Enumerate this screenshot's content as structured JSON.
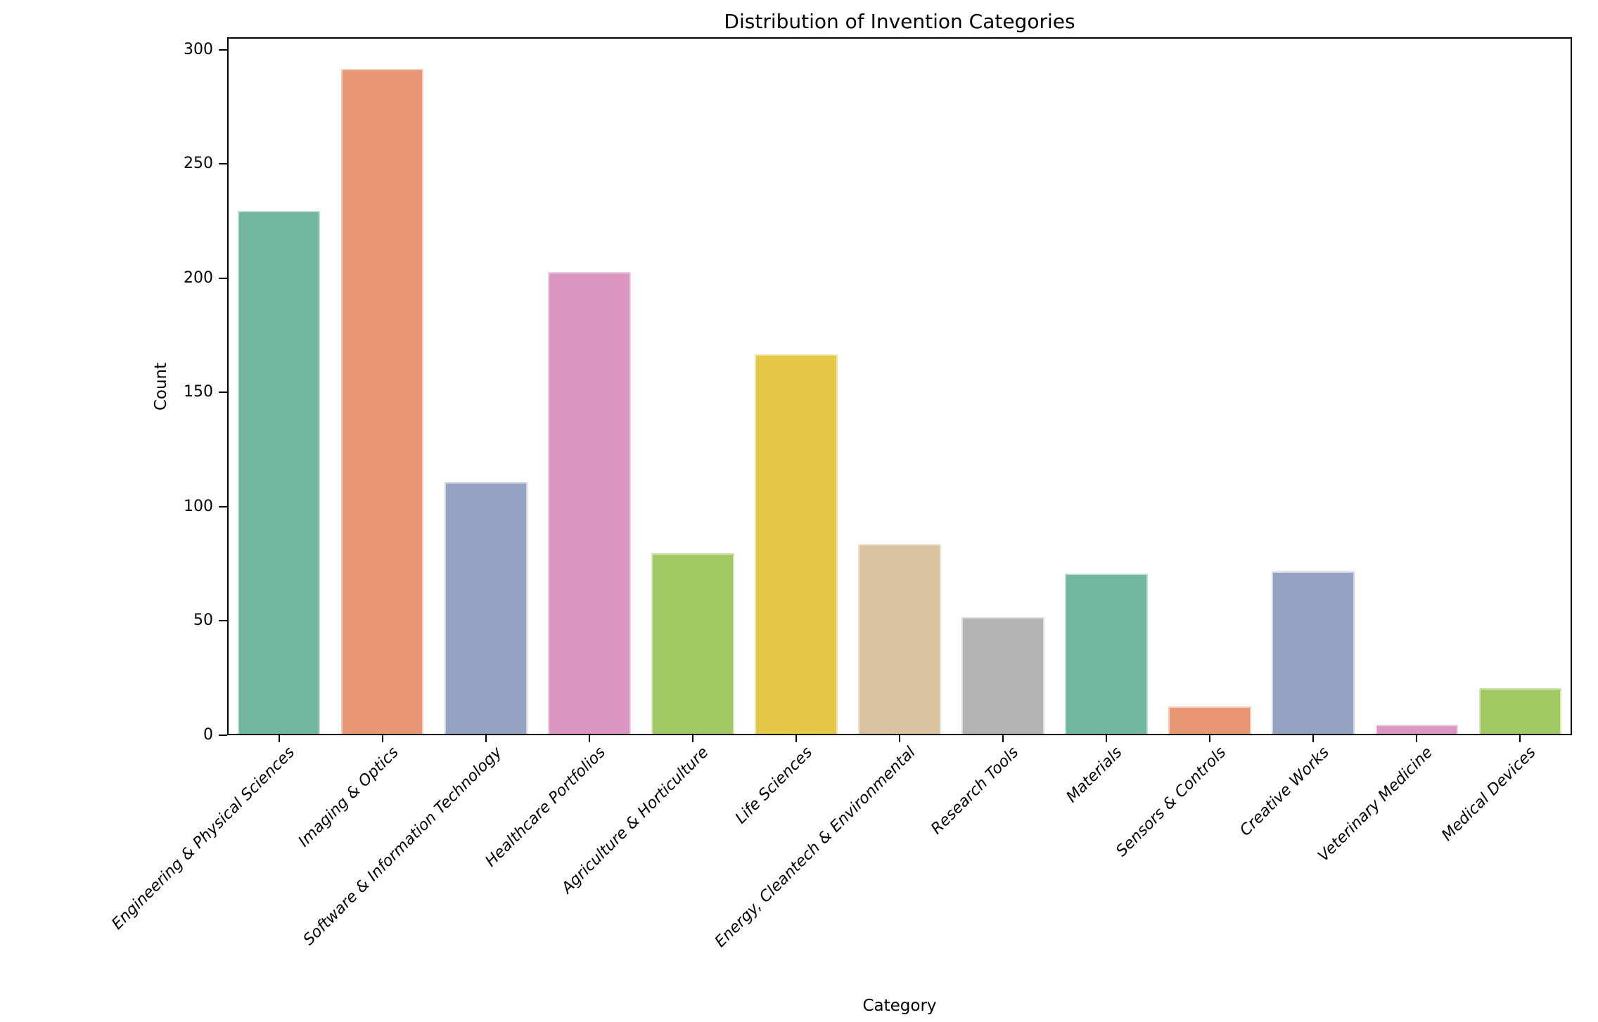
{
  "chart_data": {
    "type": "bar",
    "title": "Distribution of Invention Categories",
    "xlabel": "Category",
    "ylabel": "Count",
    "categories": [
      "Engineering & Physical Sciences",
      "Imaging & Optics",
      "Software & Information Technology",
      "Healthcare Portfolios",
      "Agriculture & Horticulture",
      "Life Sciences",
      "Energy, Cleantech & Environmental",
      "Research Tools",
      "Materials",
      "Sensors & Controls",
      "Creative Works",
      "Veterinary Medicine",
      "Medical Devices"
    ],
    "values": [
      229,
      291,
      110,
      202,
      79,
      166,
      83,
      51,
      70,
      12,
      71,
      4,
      20
    ],
    "bar_colors": [
      "#71b6a1",
      "#e99675",
      "#95a3c3",
      "#db96c1",
      "#a2c864",
      "#e5c849",
      "#dbc29e",
      "#b3b3b3",
      "#71b6a1",
      "#e99675",
      "#95a3c3",
      "#db96c1",
      "#a2c864"
    ],
    "yticks": [
      0,
      50,
      100,
      150,
      200,
      250,
      300
    ],
    "ylim": [
      0,
      305.5
    ],
    "x_tick_rotation": 45,
    "x_tick_style": "italic",
    "grid": false,
    "legend": "none",
    "axis_color": "#000000",
    "background_color": "#ffffff"
  }
}
